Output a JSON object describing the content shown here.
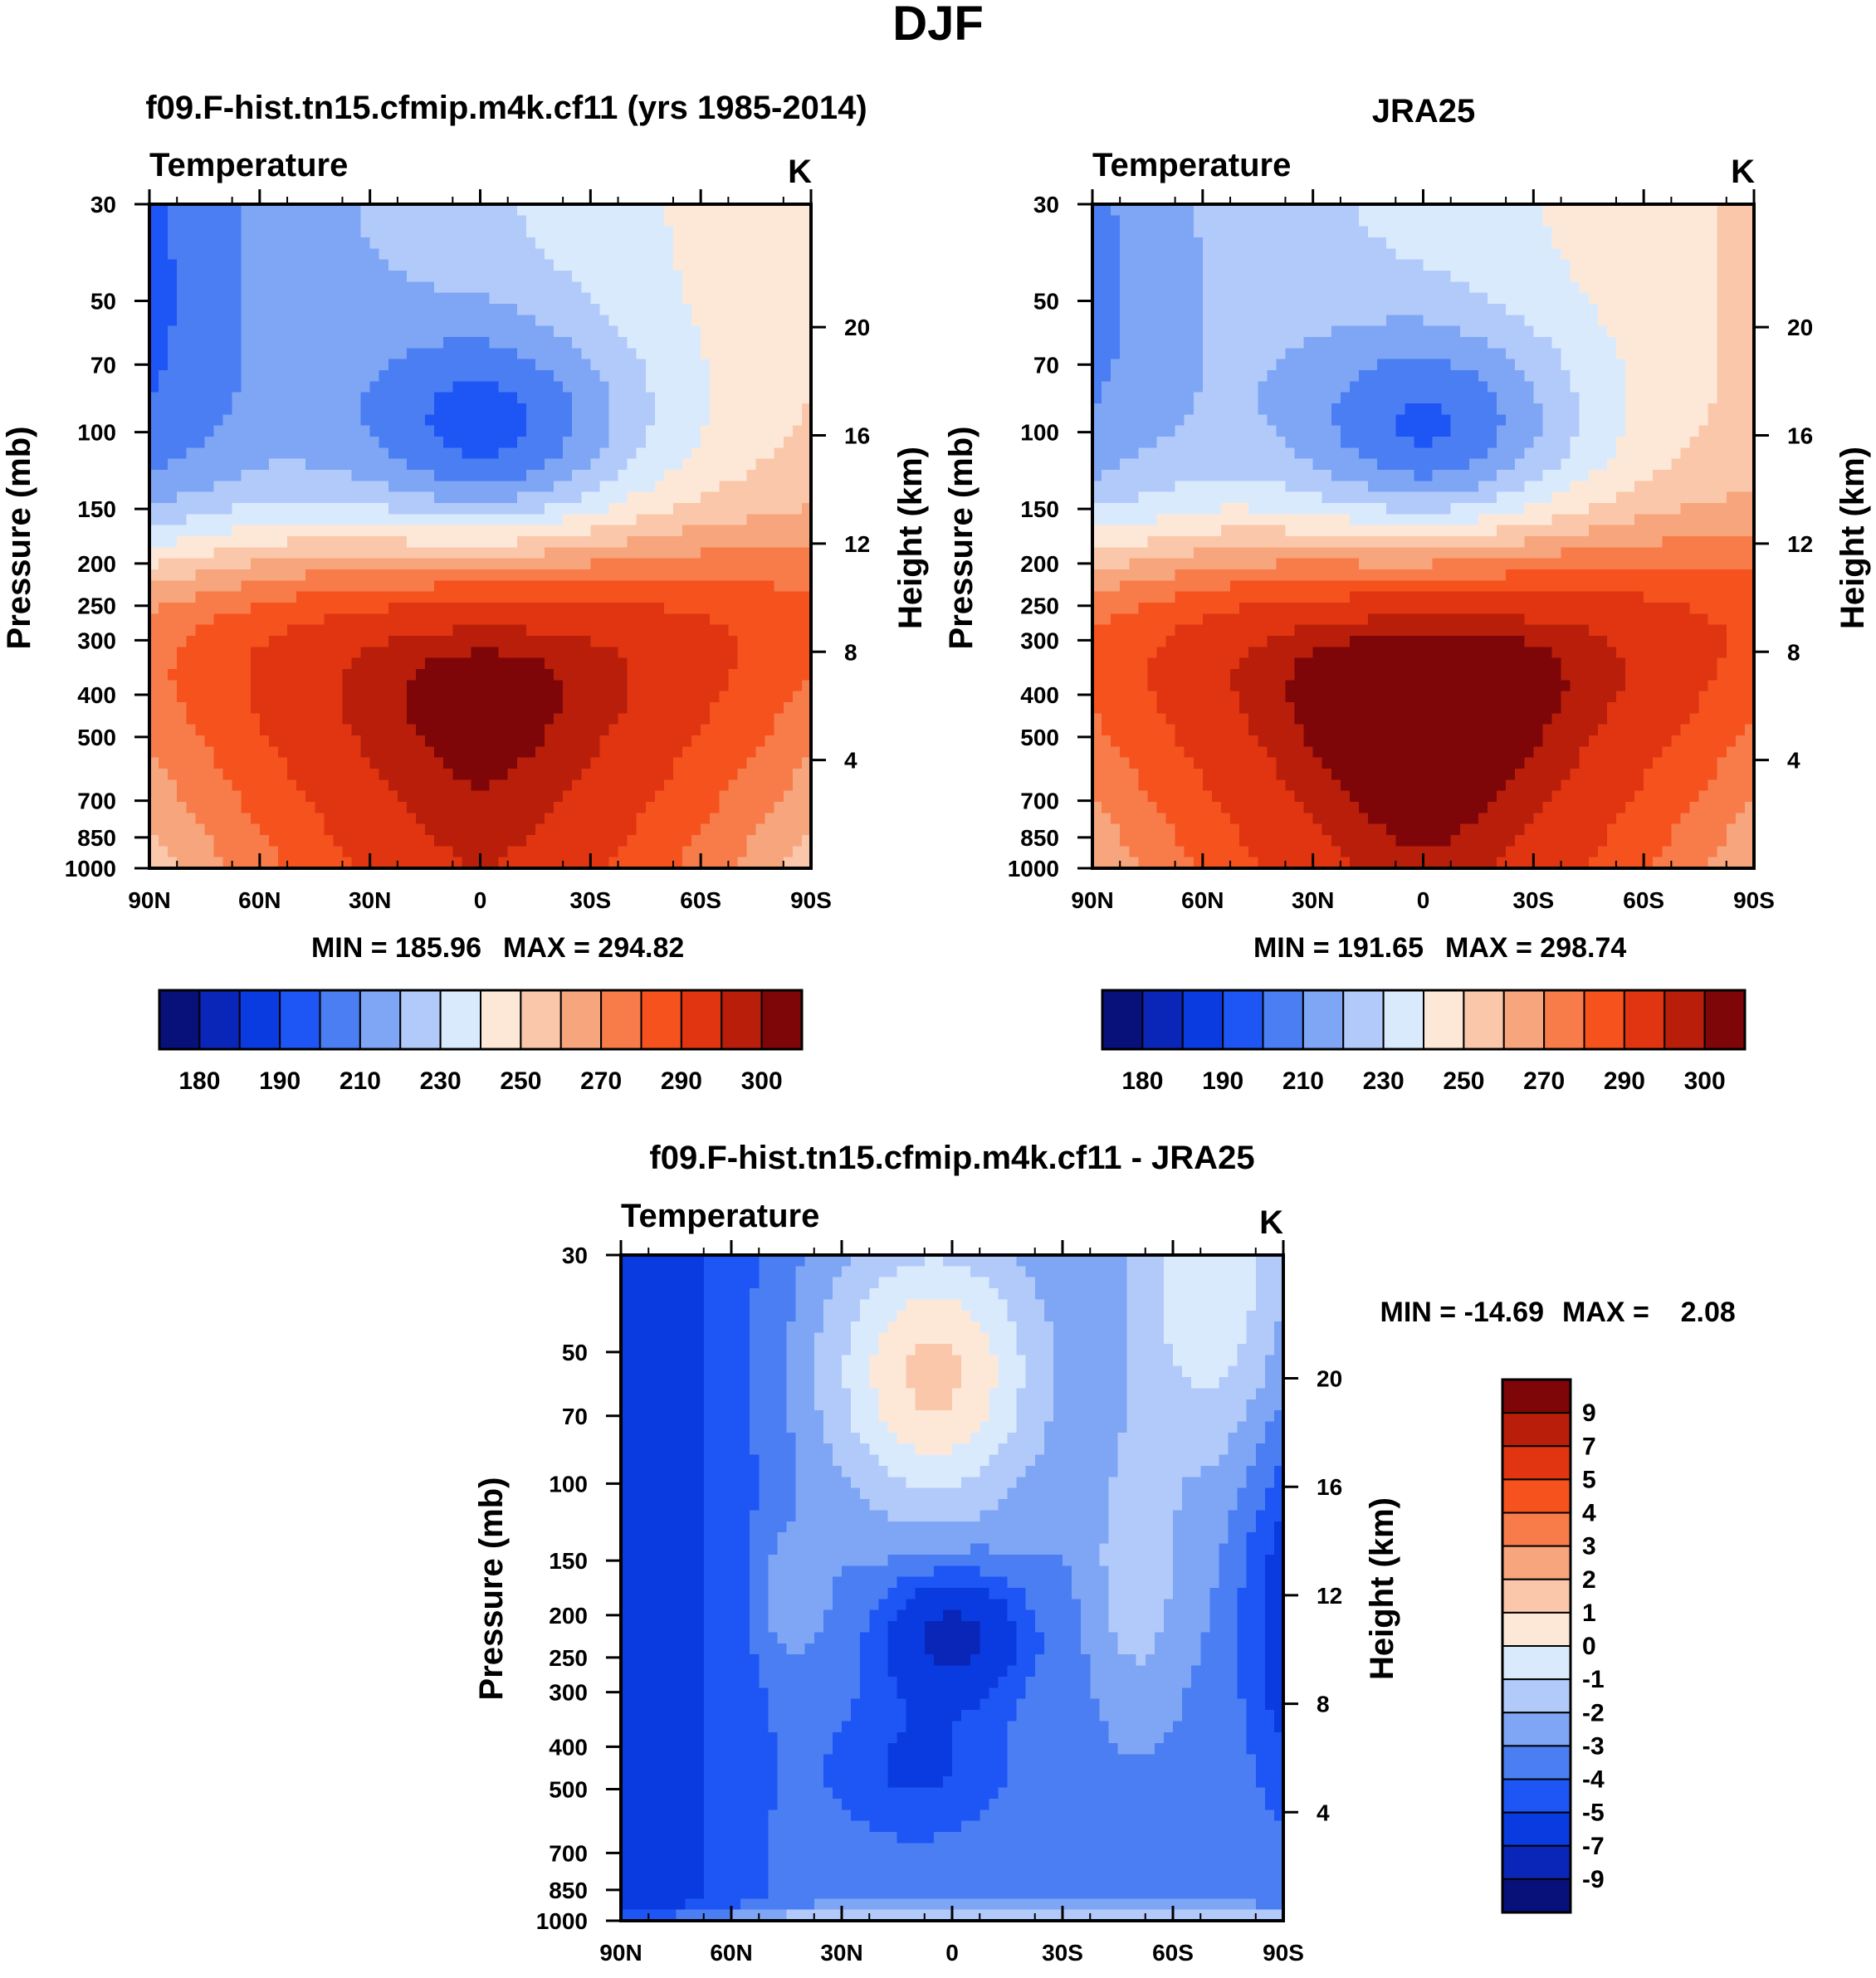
{
  "figure_title": "DJF",
  "colors": {
    "abs_palette": [
      "#08107a",
      "#0a26b8",
      "#0a3be0",
      "#1e55f5",
      "#4a7ef2",
      "#7ea6f5",
      "#b2cafa",
      "#daeafd",
      "#fde8d8",
      "#fbc7aa",
      "#f7a57c",
      "#f77c4a",
      "#f5521e",
      "#e03510",
      "#b81e0a",
      "#7e0608"
    ],
    "diff_palette": [
      "#08107a",
      "#0a26b8",
      "#0a3be0",
      "#1e55f5",
      "#4a7ef2",
      "#7ea6f5",
      "#b2cafa",
      "#daeafd",
      "#fde8d8",
      "#fbc7aa",
      "#f7a57c",
      "#f77c4a",
      "#f5521e",
      "#e03510",
      "#b81e0a",
      "#7e0608"
    ]
  },
  "chart_data": [
    {
      "type": "heatmap",
      "name": "model",
      "title": "f09.F-hist.tn15.cfmip.m4k.cf11 (yrs 1985-2014)",
      "left_label": "Temperature",
      "unit_label": "K",
      "ylabel": "Pressure (mb)",
      "y2label": "Height (km)",
      "x_ticks": [
        "90N",
        "60N",
        "30N",
        "0",
        "30S",
        "60S",
        "90S"
      ],
      "x_range": [
        90,
        -90
      ],
      "y_ticks": [
        30,
        50,
        70,
        100,
        150,
        200,
        250,
        300,
        400,
        500,
        700,
        850,
        1000
      ],
      "y_range": [
        30,
        1000
      ],
      "y_scale": "log",
      "height_ticks": [
        4,
        8,
        12,
        16,
        20
      ],
      "min_label": "MIN = 185.96",
      "max_label": "MAX = 294.82",
      "contour_levels": [
        175,
        180,
        185,
        190,
        200,
        210,
        220,
        230,
        240,
        250,
        260,
        270,
        280,
        290,
        295,
        300
      ],
      "colorbar_labels": [
        "180",
        "190",
        "210",
        "230",
        "250",
        "270",
        "290",
        "300"
      ],
      "profile": {
        "T_surface": 290.0,
        "T_pole_surface": 244.0,
        "T_tropopause": 190.0,
        "T_strat_north": 195.0,
        "T_strat_south": 241.0,
        "T_strat_lat_slope": 0.24
      }
    },
    {
      "type": "heatmap",
      "name": "obs",
      "title": "JRA25",
      "left_label": "Temperature",
      "unit_label": "K",
      "ylabel": "Pressure (mb)",
      "y2label": "Height (km)",
      "x_ticks": [
        "90N",
        "60N",
        "30N",
        "0",
        "30S",
        "60S",
        "90S"
      ],
      "x_range": [
        90,
        -90
      ],
      "y_ticks": [
        30,
        50,
        70,
        100,
        150,
        200,
        250,
        300,
        400,
        500,
        700,
        850,
        1000
      ],
      "y_range": [
        30,
        1000
      ],
      "y_scale": "log",
      "height_ticks": [
        4,
        8,
        12,
        16,
        20
      ],
      "min_label": "MIN = 191.65",
      "max_label": "MAX = 298.74",
      "contour_levels": [
        175,
        180,
        185,
        190,
        200,
        210,
        220,
        230,
        240,
        250,
        260,
        270,
        280,
        290,
        295,
        300
      ],
      "colorbar_labels": [
        "180",
        "190",
        "210",
        "230",
        "250",
        "270",
        "290",
        "300"
      ],
      "profile": {
        "T_surface": 294.0,
        "T_pole_surface": 250.0,
        "T_tropopause": 193.0,
        "T_strat_north": 205.0,
        "T_strat_south": 243.0,
        "T_strat_lat_slope": 0.2
      }
    },
    {
      "type": "heatmap",
      "name": "difference",
      "title": "f09.F-hist.tn15.cfmip.m4k.cf11 - JRA25",
      "left_label": "Temperature",
      "unit_label": "K",
      "ylabel": "Pressure (mb)",
      "y2label": "Height (km)",
      "x_ticks": [
        "90N",
        "60N",
        "30N",
        "0",
        "30S",
        "60S",
        "90S"
      ],
      "x_range": [
        90,
        -90
      ],
      "y_ticks": [
        30,
        50,
        70,
        100,
        150,
        200,
        250,
        300,
        400,
        500,
        700,
        850,
        1000
      ],
      "y_range": [
        30,
        1000
      ],
      "y_scale": "log",
      "height_ticks": [
        4,
        8,
        12,
        16,
        20
      ],
      "min_label": "MIN = -14.69",
      "max_label": "MAX =    2.08",
      "contour_levels": [
        -9,
        -7,
        -5,
        -4,
        -3,
        -2,
        -1,
        0,
        1,
        2,
        3,
        4,
        5,
        7,
        9
      ],
      "colorbar_labels": [
        "9",
        "7",
        "5",
        "4",
        "3",
        "2",
        "1",
        "0",
        "-1",
        "-2",
        "-3",
        "-4",
        "-5",
        "-7",
        "-9"
      ]
    }
  ]
}
